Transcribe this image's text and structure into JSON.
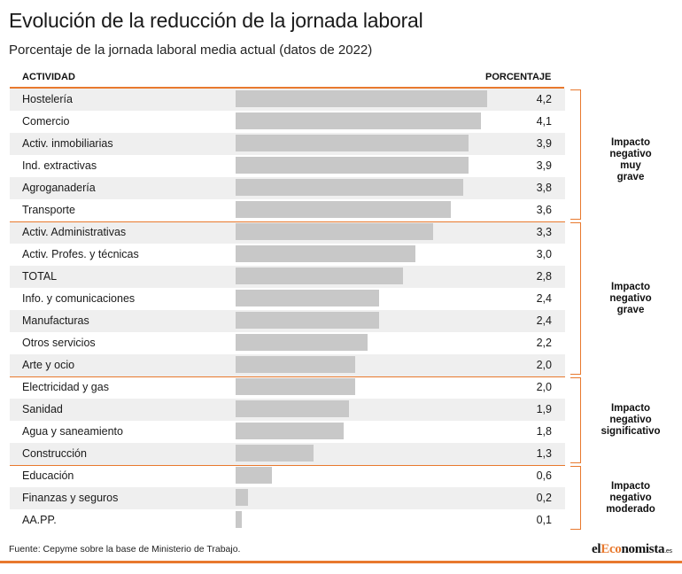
{
  "header": {
    "title": "Evolución de la reducción de la jornada laboral",
    "subtitle": "Porcentaje de la jornada laboral media actual (datos de 2022)"
  },
  "columns": {
    "activity": "ACTIVIDAD",
    "percentage": "PORCENTAJE"
  },
  "chart_data": {
    "type": "bar",
    "orientation": "horizontal",
    "categories": [
      "Hostelería",
      "Comercio",
      "Activ. inmobiliarias",
      "Ind. extractivas",
      "Agroganadería",
      "Transporte",
      "Activ. Administrativas",
      "Activ. Profes. y técnicas",
      "TOTAL",
      "Info. y comunicaciones",
      "Manufacturas",
      "Otros servicios",
      "Arte y ocio",
      "Electricidad y gas",
      "Sanidad",
      "Agua y saneamiento",
      "Construcción",
      "Educación",
      "Finanzas y seguros",
      "AA.PP."
    ],
    "values": [
      4.2,
      4.1,
      3.9,
      3.9,
      3.8,
      3.6,
      3.3,
      3.0,
      2.8,
      2.4,
      2.4,
      2.2,
      2.0,
      2.0,
      1.9,
      1.8,
      1.3,
      0.6,
      0.2,
      0.1
    ],
    "value_labels": [
      "4,2",
      "4,1",
      "3,9",
      "3,9",
      "3,8",
      "3,6",
      "3,3",
      "3,0",
      "2,8",
      "2,4",
      "2,4",
      "2,2",
      "2,0",
      "2,0",
      "1,9",
      "1,8",
      "1,3",
      "0,6",
      "0,2",
      "0,1"
    ],
    "xlim": [
      0,
      4.4
    ],
    "bar_color": "#c8c8c8",
    "accent_color": "#e8792e",
    "groups": [
      {
        "label": "Impacto negativo muy grave",
        "start": 0,
        "end": 5
      },
      {
        "label": "Impacto negativo grave",
        "start": 6,
        "end": 12
      },
      {
        "label": "Impacto negativo significativo",
        "start": 13,
        "end": 16
      },
      {
        "label": "Impacto negativo moderado",
        "start": 17,
        "end": 19
      }
    ]
  },
  "footer": {
    "source": "Fuente: Cepyme sobre la base de Ministerio de Trabajo.",
    "logo_el": "el",
    "logo_accent": "Eco",
    "logo_rest": "nomista",
    "logo_suffix": ".es"
  }
}
